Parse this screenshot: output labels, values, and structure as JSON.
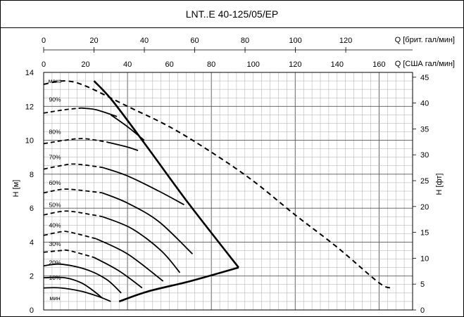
{
  "chart_data": {
    "type": "line",
    "title": "LNT..E 40-125/05/EP",
    "ylabel_left": "H [м]",
    "ylabel_right": "H [фт]",
    "xlabel_top": "Q [брит. гал/мин]",
    "xlabel_bottom": "Q [США гал/мин]",
    "y_left_ticks": [
      "14",
      "12",
      "10",
      "8",
      "6",
      "4",
      "2",
      "0"
    ],
    "y_right_ticks": [
      "45",
      "40",
      "35",
      "30",
      "25",
      "20",
      "15",
      "10",
      "5",
      "0"
    ],
    "x_top_ticks": [
      "0",
      "20",
      "40",
      "60",
      "80",
      "100",
      "120"
    ],
    "x_bottom_ticks": [
      "0",
      "20",
      "40",
      "60",
      "80",
      "100",
      "120",
      "140",
      "160"
    ],
    "x_range_us_gpm": [
      0,
      176
    ],
    "y_range_m": [
      0,
      14
    ],
    "grid": true,
    "speed_labels": [
      "макс",
      "90%",
      "80%",
      "70%",
      "60%",
      "50%",
      "40%",
      "30%",
      "20%",
      "10%",
      "мин"
    ],
    "series": [
      {
        "name": "макс",
        "style": "dashed",
        "x": [
          0,
          10,
          20,
          40,
          60,
          80,
          100,
          120,
          140,
          160,
          166
        ],
        "y": [
          13.3,
          13.5,
          13.2,
          12.0,
          10.8,
          9.3,
          7.6,
          5.6,
          3.7,
          1.6,
          1.3
        ]
      },
      {
        "name": "90%",
        "style": "dashed-solid",
        "x": [
          0,
          10,
          18,
          25,
          35
        ],
        "y": [
          11.6,
          11.8,
          11.9,
          11.8,
          11.4
        ]
      },
      {
        "name": "90%",
        "style": "solid",
        "x": [
          32,
          40,
          48
        ],
        "y": [
          11.5,
          10.8,
          10.0
        ]
      },
      {
        "name": "80%",
        "style": "dashed-solid",
        "x": [
          0,
          10,
          19,
          30,
          40,
          45
        ],
        "y": [
          9.8,
          10.0,
          10.1,
          9.9,
          9.6,
          9.4
        ]
      },
      {
        "name": "70%",
        "style": "dashed-solid",
        "x": [
          0,
          8,
          15,
          28,
          40,
          55,
          67
        ],
        "y": [
          8.3,
          8.5,
          8.6,
          8.4,
          7.9,
          7.0,
          6.2
        ]
      },
      {
        "name": "60%",
        "style": "dashed-solid",
        "x": [
          0,
          8,
          14,
          28,
          40,
          55,
          71
        ],
        "y": [
          6.9,
          7.1,
          7.1,
          6.9,
          6.3,
          5.2,
          3.3
        ]
      },
      {
        "name": "50%",
        "style": "dashed-solid",
        "x": [
          0,
          8,
          14,
          28,
          42,
          56,
          65
        ],
        "y": [
          5.6,
          5.8,
          5.8,
          5.5,
          4.8,
          3.5,
          2.2
        ]
      },
      {
        "name": "40%",
        "style": "dashed-solid",
        "x": [
          0,
          8,
          12,
          25,
          40,
          57
        ],
        "y": [
          4.4,
          4.6,
          4.6,
          4.2,
          3.3,
          1.7
        ]
      },
      {
        "name": "30%",
        "style": "dashed-solid",
        "x": [
          0,
          8,
          12,
          24,
          36,
          47
        ],
        "y": [
          3.4,
          3.5,
          3.5,
          3.1,
          2.3,
          1.3
        ]
      },
      {
        "name": "20%",
        "style": "solid",
        "x": [
          0,
          8,
          20,
          30,
          37
        ],
        "y": [
          2.6,
          2.7,
          2.4,
          1.8,
          1.0
        ]
      },
      {
        "name": "10%",
        "style": "solid",
        "x": [
          0,
          10,
          18,
          24,
          28
        ],
        "y": [
          1.9,
          1.9,
          1.6,
          1.1,
          0.7
        ]
      },
      {
        "name": "мин",
        "style": "solid",
        "x": [
          0,
          8,
          18,
          26,
          32
        ],
        "y": [
          1.3,
          1.3,
          1.1,
          0.8,
          0.5
        ]
      },
      {
        "name": "boundary-right",
        "style": "thick",
        "x": [
          24,
          33,
          50,
          69,
          93
        ],
        "y": [
          13.5,
          12.3,
          9.5,
          6.3,
          2.5
        ]
      },
      {
        "name": "boundary-bottom",
        "style": "thick",
        "x": [
          36,
          50,
          70,
          93
        ],
        "y": [
          0.5,
          1.1,
          1.7,
          2.5
        ]
      }
    ]
  }
}
